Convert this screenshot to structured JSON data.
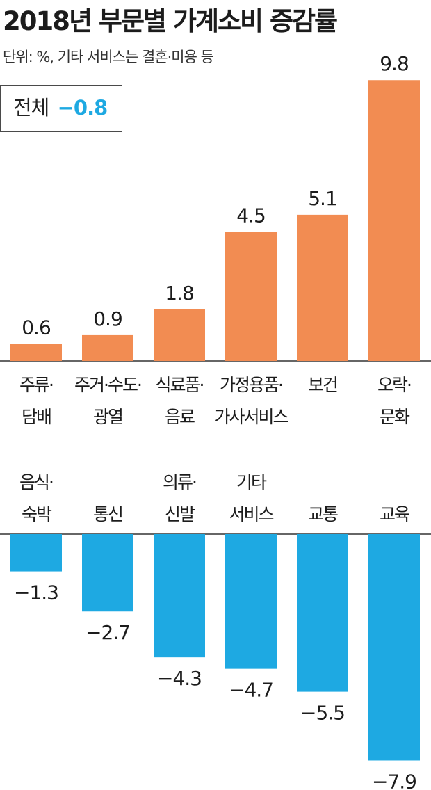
{
  "title": "2018년 부문별 가계소비 증감률",
  "unit_note": "단위: %, 기타 서비스는 결혼·미용 등",
  "total": {
    "label": "전체",
    "value": "−0.8"
  },
  "colors": {
    "positive": "#f28c52",
    "negative": "#1ea9e2",
    "axis": "#333333",
    "total_value": "#1ea9e2"
  },
  "chart_data": [
    {
      "type": "bar",
      "categories": [
        [
          "주류·",
          "담배"
        ],
        [
          "주거·수도·",
          "광열"
        ],
        [
          "식료품·",
          "음료"
        ],
        [
          "가정용품·",
          "가사서비스"
        ],
        [
          "보건"
        ],
        [
          "오락·",
          "문화"
        ]
      ],
      "values": [
        0.6,
        0.9,
        1.8,
        4.5,
        5.1,
        9.8
      ],
      "value_labels": [
        "0.6",
        "0.9",
        "1.8",
        "4.5",
        "5.1",
        "9.8"
      ]
    },
    {
      "type": "bar",
      "categories": [
        [
          "음식·",
          "숙박"
        ],
        [
          "통신"
        ],
        [
          "의류·",
          "신발"
        ],
        [
          "기타",
          "서비스"
        ],
        [
          "교통"
        ],
        [
          "교육"
        ]
      ],
      "values": [
        -1.3,
        -2.7,
        -4.3,
        -4.7,
        -5.5,
        -7.9
      ],
      "value_labels": [
        "−1.3",
        "−2.7",
        "−4.3",
        "−4.7",
        "−5.5",
        "−7.9"
      ]
    }
  ]
}
